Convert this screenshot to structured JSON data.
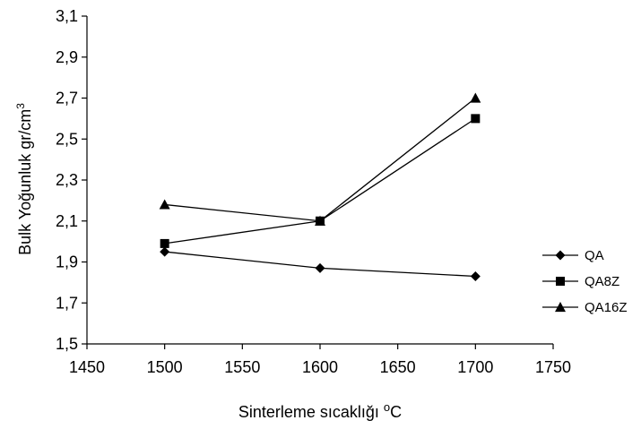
{
  "chart_data": {
    "type": "line",
    "title": "",
    "xlabel": "Sinterleme sıcaklığı",
    "xlabel_unit": "°C",
    "ylabel": "Bulk Yoğunluk gr/cm",
    "ylabel_superscript": "3",
    "xlim": [
      1450,
      1750
    ],
    "ylim": [
      1.5,
      3.1
    ],
    "x_ticks": [
      1450,
      1500,
      1550,
      1600,
      1650,
      1700,
      1750
    ],
    "y_ticks": [
      1.5,
      1.7,
      1.9,
      2.1,
      2.3,
      2.5,
      2.7,
      2.9,
      3.1
    ],
    "y_tick_labels": [
      "1,5",
      "1,7",
      "1,9",
      "2,1",
      "2,3",
      "2,5",
      "2,7",
      "2,9",
      "3,1"
    ],
    "x_tick_labels": [
      "1450",
      "1500",
      "1550",
      "1600",
      "1650",
      "1700",
      "1750"
    ],
    "x": [
      1500,
      1600,
      1700
    ],
    "series": [
      {
        "name": "QA",
        "marker": "diamond",
        "values": [
          1.95,
          1.87,
          1.83
        ]
      },
      {
        "name": "QA8Z",
        "marker": "square",
        "values": [
          1.99,
          2.1,
          2.6
        ]
      },
      {
        "name": "QA16Z",
        "marker": "triangle",
        "values": [
          2.18,
          2.1,
          2.7
        ]
      }
    ],
    "grid": false,
    "legend_position": "right",
    "line_color": "#000000"
  }
}
